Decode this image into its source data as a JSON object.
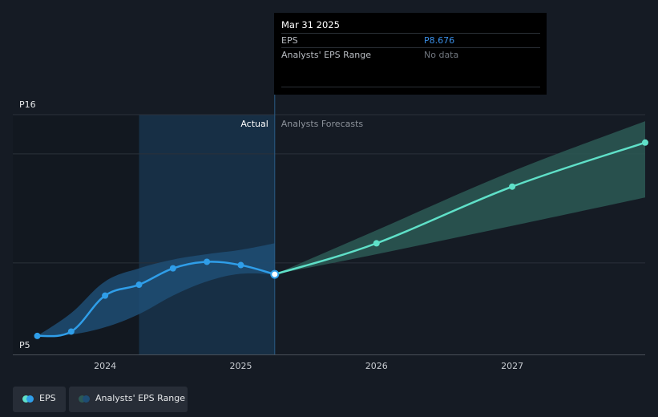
{
  "tooltip": {
    "date": "Mar 31 2025",
    "eps_label": "EPS",
    "eps_value": "P8.676",
    "range_label": "Analysts' EPS Range",
    "range_value": "No data"
  },
  "legend": {
    "eps_label": "EPS",
    "range_label": "Analysts' EPS Range"
  },
  "colors": {
    "background": "#151b24",
    "eps_actual": "#2f9ee9",
    "eps_forecast": "#5fe0c8",
    "eps_value_text": "#3a8ee6",
    "range_actual": "#1e4d74",
    "range_forecast": "#2c5955",
    "tooltip_bg": "#000000"
  },
  "chart_data": {
    "type": "line",
    "ylim": [
      5,
      16
    ],
    "xlim": [
      2023.5,
      2027.98
    ],
    "y_ticks": [
      {
        "value": 16,
        "label": "P16"
      },
      {
        "value": 5,
        "label": "P5"
      }
    ],
    "x_ticks": [
      {
        "value": 2024,
        "label": "2024"
      },
      {
        "value": 2025,
        "label": "2025"
      },
      {
        "value": 2026,
        "label": "2026"
      },
      {
        "value": 2027,
        "label": "2027"
      }
    ],
    "grid": true,
    "divider_x": 2025.25,
    "actual_label": "Actual",
    "forecast_label": "Analysts Forecasts",
    "series": [
      {
        "name": "EPS",
        "role": "actual",
        "x": [
          2023.5,
          2023.75,
          2024.0,
          2024.25,
          2024.5,
          2024.75,
          2025.0,
          2025.25
        ],
        "y": [
          5.85,
          6.05,
          7.7,
          8.2,
          8.95,
          9.25,
          9.1,
          8.676
        ]
      },
      {
        "name": "EPS",
        "role": "forecast",
        "x": [
          2025.25,
          2026.0,
          2027.0,
          2027.98
        ],
        "y": [
          8.676,
          10.1,
          12.7,
          14.72
        ]
      }
    ],
    "range_actual": {
      "x": [
        2023.5,
        2023.75,
        2024.0,
        2024.25,
        2024.5,
        2024.75,
        2025.0,
        2025.25
      ],
      "low": [
        5.85,
        5.92,
        6.25,
        6.85,
        7.7,
        8.35,
        8.7,
        8.676
      ],
      "high": [
        5.85,
        6.9,
        8.35,
        8.95,
        9.35,
        9.6,
        9.8,
        10.1
      ]
    },
    "range_forecast": {
      "x": [
        2025.25,
        2026.0,
        2027.0,
        2027.98
      ],
      "low": [
        8.676,
        9.6,
        10.9,
        12.2
      ],
      "high": [
        8.676,
        10.7,
        13.4,
        15.7
      ]
    }
  }
}
